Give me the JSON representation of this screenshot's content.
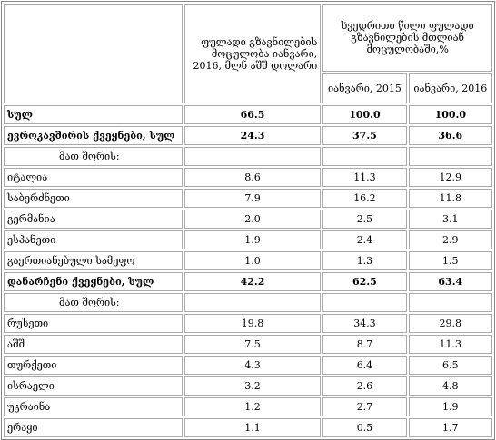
{
  "header": {
    "col0": "ფულადი გზავნილების მოცულობა იანვარი, 2016, მლნ აშშ დოლარი",
    "group": "ხვედრითი წილი ფულადი გზავნილების მთლიან მოცულობაში,%",
    "sub": [
      "იანვარი, 2015",
      "იანვარი, 2016"
    ]
  },
  "table": {
    "rows": [
      [
        "სულ",
        "66.5",
        "100.0",
        "100.0"
      ],
      [
        "ევროკავშირის ქვეყნები, სულ",
        "24.3",
        "37.5",
        "36.6"
      ],
      [
        "მათ შორის:"
      ],
      [
        "იტალია",
        "8.6",
        "11.3",
        "12.9"
      ],
      [
        "საბერძნეთი",
        "7.9",
        "16.2",
        "11.8"
      ],
      [
        "გერმანია",
        "2.0",
        "2.5",
        "3.1"
      ],
      [
        "ესპანეთი",
        "1.9",
        "2.4",
        "2.9"
      ],
      [
        "გაერთიანებული სამეფო",
        "1.0",
        "1.3",
        "1.5"
      ],
      [
        "დანარჩენი ქვეყნები, სულ",
        "42.2",
        "62.5",
        "63.4"
      ],
      [
        "მათ შორის:"
      ],
      [
        "რუსეთი",
        "19.8",
        "34.3",
        "29.8"
      ],
      [
        "აშშ",
        "7.5",
        "8.7",
        "11.3"
      ],
      [
        "თურქეთი",
        "4.3",
        "6.4",
        "6.5"
      ],
      [
        "ისრაელი",
        "3.2",
        "2.6",
        "4.8"
      ],
      [
        "უკრაინა",
        "1.2",
        "2.7",
        "1.9"
      ],
      [
        "ერაყი",
        "1.1",
        "0.5",
        "1.7"
      ]
    ]
  }
}
